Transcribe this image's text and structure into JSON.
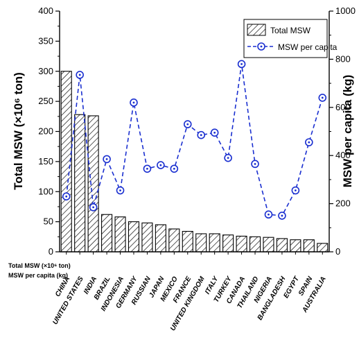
{
  "chart_data": {
    "type": "bar",
    "categories": [
      "CHINA",
      "UNITED STATES",
      "INDIA",
      "BRAZIL",
      "INDONESIA",
      "GERMANY",
      "RUSSIAN",
      "JAPAN",
      "MEXICO",
      "FRANCE",
      "UNITED KINGDOM",
      "ITALY",
      "TURKEY",
      "CANADA",
      "THAILAND",
      "NIGERIA",
      "BANGLADESH",
      "EGYPT",
      "SPAIN",
      "AUSTRALIA"
    ],
    "series": [
      {
        "name": "Total MSW",
        "axis": "left",
        "type": "bar",
        "pattern": "diagonal-hatch",
        "values": [
          300,
          228,
          226,
          62,
          58,
          50,
          48,
          45,
          38,
          34,
          30,
          30,
          28,
          26,
          25,
          24,
          22,
          20,
          20,
          14
        ]
      },
      {
        "name": "MSW per capita",
        "axis": "right",
        "type": "line",
        "line_style": "dashed",
        "marker": "circle-dot",
        "color": "#1a2fd0",
        "values": [
          230,
          735,
          185,
          385,
          255,
          620,
          345,
          360,
          345,
          530,
          485,
          495,
          390,
          780,
          365,
          155,
          150,
          255,
          455,
          640
        ]
      }
    ],
    "ylabel_left": "Total MSW (×10⁶ ton)",
    "ylabel_right": "MSW per capita (kg)",
    "ylim_left": [
      0,
      400
    ],
    "yticks_left": [
      "0",
      "50",
      "100",
      "150",
      "200",
      "250",
      "300",
      "350",
      "400"
    ],
    "ylim_right": [
      0,
      1000
    ],
    "yticks_right": [
      "0",
      "200",
      "400",
      "600",
      "800",
      "1000"
    ],
    "legend_position": "top-right",
    "grid": false,
    "table_row_labels": [
      "Total MSW (×10⁶ ton)",
      "MSW per capita (kg)"
    ]
  }
}
